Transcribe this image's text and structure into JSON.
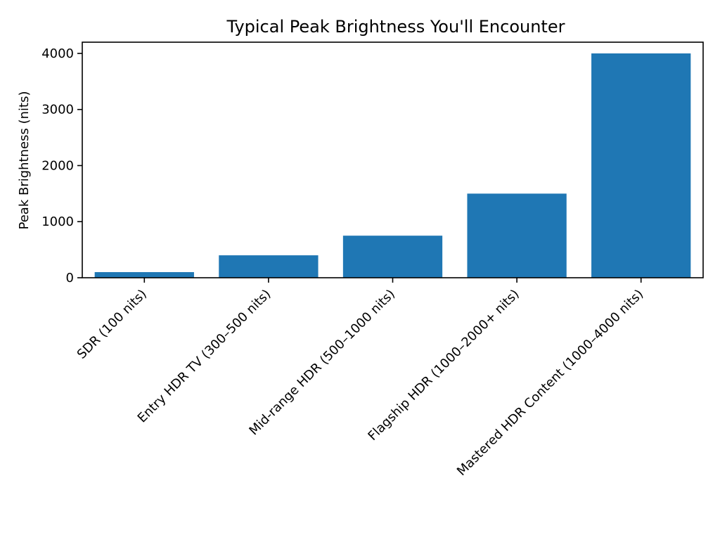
{
  "chart_data": {
    "type": "bar",
    "title": "Typical Peak Brightness You'll Encounter",
    "xlabel": "",
    "ylabel": "Peak Brightness (nits)",
    "categories": [
      "SDR (100 nits)",
      "Entry HDR TV (300–500 nits)",
      "Mid-range HDR (500–1000 nits)",
      "Flagship HDR (1000–2000+ nits)",
      "Mastered HDR Content (1000–4000 nits)"
    ],
    "values": [
      100,
      400,
      750,
      1500,
      4000
    ],
    "ylim": [
      0,
      4200
    ],
    "yticks": [
      0,
      1000,
      2000,
      3000,
      4000
    ],
    "bar_color": "#1f77b4",
    "grid": false,
    "legend": "none"
  }
}
